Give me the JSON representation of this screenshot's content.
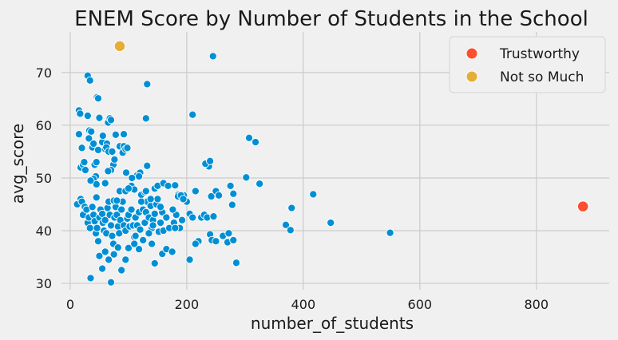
{
  "chart_data": {
    "type": "scatter",
    "title": "ENEM Score by Number of Students in the School",
    "xlabel": "number_of_students",
    "ylabel": "avg_score",
    "xlim": [
      -15,
      925
    ],
    "ylim": [
      28.8,
      77.7
    ],
    "xticks": [
      0,
      200,
      400,
      600,
      800
    ],
    "yticks": [
      30,
      40,
      50,
      60,
      70
    ],
    "xtick_labels": [
      "0",
      "200",
      "400",
      "600",
      "800"
    ],
    "ytick_labels": [
      "30",
      "40",
      "50",
      "60",
      "70"
    ],
    "grid": true,
    "legend_position": "top-right",
    "base_series": {
      "color": "#008fd5",
      "points": [
        [
          15,
          62.8
        ],
        [
          17,
          62.2
        ],
        [
          15,
          58.3
        ],
        [
          20,
          55.7
        ],
        [
          18,
          52
        ],
        [
          22,
          52.5
        ],
        [
          24,
          53
        ],
        [
          26,
          51.5
        ],
        [
          30,
          69.4
        ],
        [
          34,
          68.5
        ],
        [
          30,
          61.8
        ],
        [
          33,
          59
        ],
        [
          36,
          58.8
        ],
        [
          32,
          57.5
        ],
        [
          38,
          55.8
        ],
        [
          40,
          56.5
        ],
        [
          42,
          52.5
        ],
        [
          44,
          50.3
        ],
        [
          45,
          53
        ],
        [
          46,
          65.3
        ],
        [
          48,
          65.1
        ],
        [
          50,
          61.4
        ],
        [
          48,
          55.3
        ],
        [
          55,
          56.8
        ],
        [
          56,
          58
        ],
        [
          60,
          55.5
        ],
        [
          63,
          56.5
        ],
        [
          65,
          60.5
        ],
        [
          68,
          61.3
        ],
        [
          70,
          61
        ],
        [
          62,
          55.8
        ],
        [
          66,
          55
        ],
        [
          72,
          55
        ],
        [
          74,
          52.5
        ],
        [
          76,
          53.5
        ],
        [
          70,
          51.5
        ],
        [
          78,
          58.2
        ],
        [
          85,
          56
        ],
        [
          90,
          54.8
        ],
        [
          92,
          58.3
        ],
        [
          92,
          56
        ],
        [
          95,
          55.5
        ],
        [
          98,
          55.7
        ],
        [
          96,
          51
        ],
        [
          12,
          45
        ],
        [
          18,
          46
        ],
        [
          20,
          45.5
        ],
        [
          25,
          44.5
        ],
        [
          22,
          43
        ],
        [
          28,
          44
        ],
        [
          30,
          41.5
        ],
        [
          32,
          42.5
        ],
        [
          34,
          40.5
        ],
        [
          38,
          44.5
        ],
        [
          40,
          43
        ],
        [
          42,
          41.8
        ],
        [
          44,
          39.5
        ],
        [
          46,
          40.5
        ],
        [
          48,
          38
        ],
        [
          50,
          42.5
        ],
        [
          52,
          44
        ],
        [
          55,
          43.2
        ],
        [
          56,
          41.5
        ],
        [
          58,
          40
        ],
        [
          60,
          42
        ],
        [
          62,
          39.5
        ],
        [
          64,
          44.3
        ],
        [
          66,
          45.5
        ],
        [
          68,
          43
        ],
        [
          70,
          41
        ],
        [
          72,
          39
        ],
        [
          74,
          37.5
        ],
        [
          76,
          42.5
        ],
        [
          78,
          44.5
        ],
        [
          80,
          43
        ],
        [
          82,
          40.8
        ],
        [
          84,
          39.5
        ],
        [
          86,
          42
        ],
        [
          88,
          44
        ],
        [
          90,
          45.5
        ],
        [
          92,
          41
        ],
        [
          95,
          40
        ],
        [
          98,
          42.3
        ],
        [
          100,
          43
        ],
        [
          102,
          40.8
        ],
        [
          105,
          44
        ],
        [
          108,
          41
        ],
        [
          110,
          38.8
        ],
        [
          112,
          42.5
        ],
        [
          115,
          41
        ],
        [
          118,
          43.5
        ],
        [
          120,
          40.2
        ],
        [
          122,
          46.8
        ],
        [
          125,
          44
        ],
        [
          128,
          41.5
        ],
        [
          130,
          43.5
        ],
        [
          132,
          45.5
        ],
        [
          135,
          42.5
        ],
        [
          138,
          44.7
        ],
        [
          140,
          40.5
        ],
        [
          142,
          42
        ],
        [
          145,
          43.2
        ],
        [
          148,
          45
        ],
        [
          150,
          46
        ],
        [
          152,
          39.8
        ],
        [
          155,
          41.5
        ],
        [
          158,
          43.5
        ],
        [
          160,
          40
        ],
        [
          165,
          42.5
        ],
        [
          170,
          40.5
        ],
        [
          175,
          44
        ],
        [
          178,
          41.5
        ],
        [
          182,
          43
        ],
        [
          185,
          46.8
        ],
        [
          188,
          40.5
        ],
        [
          192,
          42
        ],
        [
          195,
          46.7
        ],
        [
          200,
          45.5
        ],
        [
          205,
          43.2
        ],
        [
          210,
          42.5
        ],
        [
          215,
          47.5
        ],
        [
          220,
          38
        ],
        [
          225,
          42.5
        ],
        [
          230,
          43
        ],
        [
          235,
          42.5
        ],
        [
          240,
          39.3
        ],
        [
          243,
          38.2
        ],
        [
          246,
          42.7
        ],
        [
          250,
          38
        ],
        [
          40,
          49.8
        ],
        [
          45,
          46.3
        ],
        [
          60,
          49
        ],
        [
          75,
          45.7
        ],
        [
          85,
          47.5
        ],
        [
          95,
          47.5
        ],
        [
          105,
          48.5
        ],
        [
          110,
          47.8
        ],
        [
          115,
          50.5
        ],
        [
          120,
          51
        ],
        [
          128,
          47.3
        ],
        [
          130,
          47.5
        ],
        [
          132,
          52.3
        ],
        [
          138,
          46
        ],
        [
          145,
          48
        ],
        [
          150,
          48.5
        ],
        [
          160,
          49
        ],
        [
          168,
          48.5
        ],
        [
          176,
          44
        ],
        [
          180,
          48.6
        ],
        [
          185,
          46.5
        ],
        [
          190,
          46.7
        ],
        [
          194,
          46
        ],
        [
          238,
          52.2
        ],
        [
          232,
          52.7
        ],
        [
          240,
          53.2
        ],
        [
          242,
          46.5
        ],
        [
          250,
          47.5
        ],
        [
          255,
          46.7
        ],
        [
          275,
          48.5
        ],
        [
          280,
          47
        ],
        [
          278,
          44.9
        ],
        [
          302,
          50.1
        ],
        [
          307,
          57.6
        ],
        [
          318,
          56.8
        ],
        [
          325,
          48.9
        ],
        [
          35,
          31
        ],
        [
          70,
          30.2
        ],
        [
          88,
          32.5
        ],
        [
          55,
          32.8
        ],
        [
          50,
          35.2
        ],
        [
          60,
          36
        ],
        [
          66,
          34.5
        ],
        [
          75,
          35.5
        ],
        [
          82,
          36.8
        ],
        [
          95,
          34.5
        ],
        [
          100,
          36.7
        ],
        [
          110,
          37.5
        ],
        [
          112,
          39
        ],
        [
          118,
          36.5
        ],
        [
          125,
          38.2
        ],
        [
          135,
          39.5
        ],
        [
          140,
          37.5
        ],
        [
          145,
          33.8
        ],
        [
          158,
          35.6
        ],
        [
          165,
          36.5
        ],
        [
          175,
          36
        ],
        [
          180,
          40.5
        ],
        [
          205,
          34.5
        ],
        [
          215,
          37.5
        ],
        [
          262,
          39
        ],
        [
          270,
          37.8
        ],
        [
          272,
          39.5
        ],
        [
          280,
          38.2
        ],
        [
          285,
          33.9
        ],
        [
          370,
          41.1
        ],
        [
          378,
          40.1
        ],
        [
          380,
          44.3
        ],
        [
          417,
          46.9
        ],
        [
          447,
          41.5
        ],
        [
          549,
          39.6
        ],
        [
          132,
          67.8
        ],
        [
          130,
          61.3
        ],
        [
          210,
          62
        ],
        [
          245,
          73.1
        ],
        [
          45,
          48.8
        ],
        [
          35,
          49.5
        ],
        [
          65,
          51.3
        ],
        [
          80,
          45.7
        ],
        [
          100,
          48
        ],
        [
          106,
          50
        ],
        [
          118,
          50.3
        ],
        [
          122,
          45.5
        ],
        [
          142,
          41
        ],
        [
          155,
          44.5
        ]
      ]
    },
    "series": [
      {
        "name": "Trustworthy",
        "color": "#fc4f30",
        "points": [
          [
            880,
            44.6
          ]
        ]
      },
      {
        "name": "Not so Much",
        "color": "#e5ae38",
        "points": [
          [
            85,
            75
          ]
        ]
      }
    ]
  }
}
